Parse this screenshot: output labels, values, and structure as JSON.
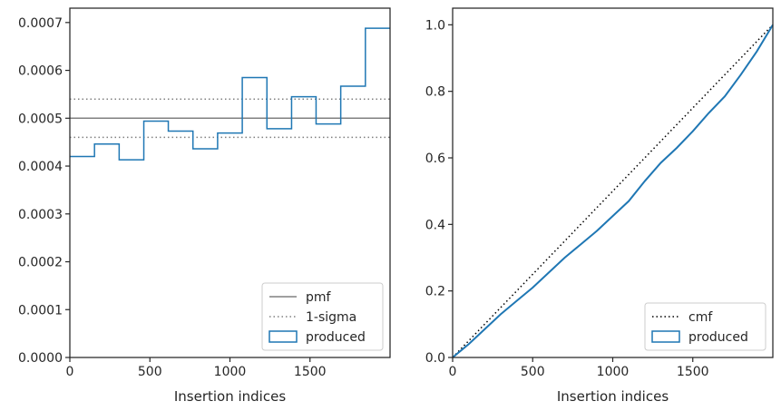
{
  "chart_data": [
    {
      "type": "histogram-step",
      "xlabel": "Insertion indices",
      "ylabel": "",
      "xlim": [
        0,
        2000
      ],
      "ylim": [
        0,
        0.00073
      ],
      "xticks": [
        0,
        500,
        1000,
        1500
      ],
      "xtick_labels": [
        "0",
        "500",
        "1000",
        "1500"
      ],
      "yticks": [
        0,
        0.0001,
        0.0002,
        0.0003,
        0.0004,
        0.0005,
        0.0006,
        0.0007
      ],
      "ytick_labels": [
        "0.0000",
        "0.0001",
        "0.0002",
        "0.0003",
        "0.0004",
        "0.0005",
        "0.0006",
        "0.0007"
      ],
      "bin_edges": [
        0,
        154,
        308,
        462,
        615,
        769,
        923,
        1077,
        1231,
        1385,
        1538,
        1692,
        1846,
        2000
      ],
      "series": [
        {
          "name": "produced",
          "color": "#1f77b4",
          "values": [
            0.00042,
            0.000446,
            0.000413,
            0.000494,
            0.000473,
            0.000436,
            0.000469,
            0.000585,
            0.000478,
            0.000545,
            0.000488,
            0.000567,
            0.000688
          ]
        }
      ],
      "reference_lines": [
        {
          "name": "pmf",
          "y": 0.0005,
          "style": "solid",
          "color": "#808080"
        },
        {
          "name": "1-sigma",
          "y": [
            0.00054,
            0.00046
          ],
          "style": "dotted",
          "color": "#808080"
        }
      ],
      "legend": {
        "position": "lower-right",
        "entries": [
          "pmf",
          "1-sigma",
          "produced"
        ]
      }
    },
    {
      "type": "line",
      "xlabel": "Insertion indices",
      "ylabel": "",
      "xlim": [
        0,
        2000
      ],
      "ylim": [
        0,
        1.05
      ],
      "xticks": [
        0,
        500,
        1000,
        1500
      ],
      "xtick_labels": [
        "0",
        "500",
        "1000",
        "1500"
      ],
      "yticks": [
        0,
        0.2,
        0.4,
        0.6,
        0.8,
        1.0
      ],
      "ytick_labels": [
        "0.0",
        "0.2",
        "0.4",
        "0.6",
        "0.8",
        "1.0"
      ],
      "series": [
        {
          "name": "cmf",
          "style": "dotted",
          "color": "#000000",
          "x": [
            0,
            2000
          ],
          "y": [
            0,
            1.0
          ]
        },
        {
          "name": "produced",
          "style": "solid",
          "color": "#1f77b4",
          "x": [
            0,
            100,
            200,
            300,
            400,
            500,
            600,
            700,
            800,
            900,
            1000,
            1100,
            1200,
            1300,
            1400,
            1500,
            1600,
            1700,
            1800,
            1900,
            2000
          ],
          "y": [
            0,
            0.04,
            0.085,
            0.13,
            0.17,
            0.21,
            0.255,
            0.3,
            0.34,
            0.38,
            0.425,
            0.47,
            0.53,
            0.585,
            0.63,
            0.68,
            0.735,
            0.785,
            0.85,
            0.92,
            1.0
          ]
        }
      ],
      "legend": {
        "position": "lower-right",
        "entries": [
          "cmf",
          "produced"
        ]
      }
    }
  ]
}
